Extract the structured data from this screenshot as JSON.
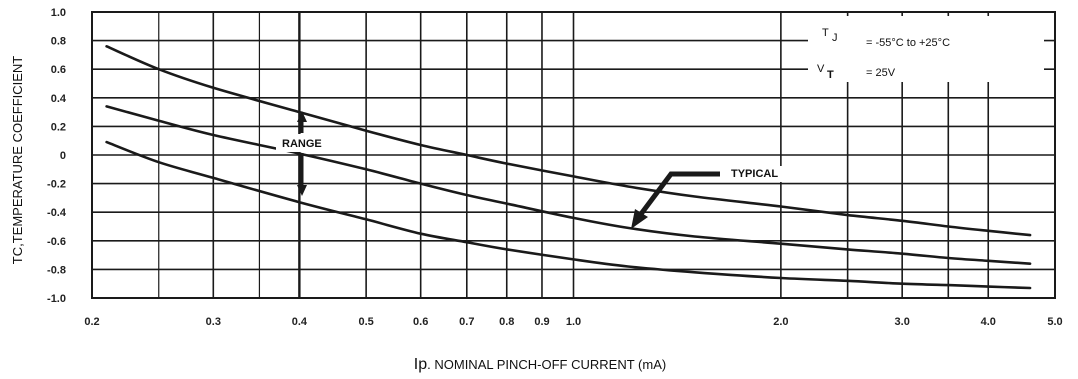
{
  "chart_data": {
    "type": "line",
    "x_scale": "log",
    "xlim": [
      0.2,
      5.0
    ],
    "ylim": [
      -1.0,
      1.0
    ],
    "grid": true,
    "xlabel_prefix": "Ip",
    "xlabel": ". NOMINAL PINCH-OFF CURRENT (mA)",
    "ylabel": "TC,TEMPERATURE COEFFICIENT",
    "x_ticks": [
      {
        "value": 0.2,
        "label": "0.2"
      },
      {
        "value": 0.3,
        "label": "0.3"
      },
      {
        "value": 0.4,
        "label": "0.4"
      },
      {
        "value": 0.5,
        "label": "0.5"
      },
      {
        "value": 0.6,
        "label": "0.6"
      },
      {
        "value": 0.7,
        "label": "0.7"
      },
      {
        "value": 0.8,
        "label": "0.8"
      },
      {
        "value": 0.9,
        "label": "0.9"
      },
      {
        "value": 1.0,
        "label": "1.0"
      },
      {
        "value": 2.0,
        "label": "2.0"
      },
      {
        "value": 3.0,
        "label": "3.0"
      },
      {
        "value": 4.0,
        "label": "4.0"
      },
      {
        "value": 5.0,
        "label": "5.0"
      }
    ],
    "y_ticks": [
      {
        "value": 1.0,
        "label": "1.0"
      },
      {
        "value": 0.8,
        "label": "0.8"
      },
      {
        "value": 0.6,
        "label": "0.6"
      },
      {
        "value": 0.4,
        "label": "0.4"
      },
      {
        "value": 0.2,
        "label": "0.2"
      },
      {
        "value": 0.0,
        "label": "0"
      },
      {
        "value": -0.2,
        "label": "-0.2"
      },
      {
        "value": -0.4,
        "label": "-0.4"
      },
      {
        "value": -0.6,
        "label": "-0.6"
      },
      {
        "value": -0.8,
        "label": "-0.8"
      },
      {
        "value": -1.0,
        "label": "-1.0"
      }
    ],
    "series": [
      {
        "role": "upper",
        "x": [
          0.21,
          0.25,
          0.3,
          0.4,
          0.5,
          0.6,
          0.7,
          0.8,
          1.0,
          1.2,
          1.5,
          2.0,
          2.5,
          3.0,
          3.5,
          4.0,
          4.6
        ],
        "y": [
          0.76,
          0.6,
          0.47,
          0.3,
          0.17,
          0.07,
          0.0,
          -0.06,
          -0.15,
          -0.22,
          -0.29,
          -0.36,
          -0.42,
          -0.46,
          -0.5,
          -0.53,
          -0.56
        ]
      },
      {
        "role": "typical",
        "x": [
          0.21,
          0.25,
          0.3,
          0.4,
          0.5,
          0.6,
          0.7,
          0.8,
          1.0,
          1.2,
          1.5,
          2.0,
          2.5,
          3.0,
          3.5,
          4.0,
          4.6
        ],
        "y": [
          0.34,
          0.24,
          0.14,
          0.01,
          -0.1,
          -0.2,
          -0.28,
          -0.34,
          -0.44,
          -0.51,
          -0.57,
          -0.62,
          -0.66,
          -0.69,
          -0.72,
          -0.74,
          -0.76
        ]
      },
      {
        "role": "lower",
        "x": [
          0.21,
          0.25,
          0.3,
          0.4,
          0.5,
          0.6,
          0.7,
          0.8,
          1.0,
          1.2,
          1.5,
          2.0,
          2.5,
          3.0,
          3.5,
          4.0,
          4.6
        ],
        "y": [
          0.09,
          -0.05,
          -0.16,
          -0.33,
          -0.45,
          -0.55,
          -0.61,
          -0.66,
          -0.73,
          -0.78,
          -0.82,
          -0.86,
          -0.88,
          -0.9,
          -0.91,
          -0.92,
          -0.93
        ]
      }
    ],
    "annotations": {
      "range_label": "RANGE",
      "typical_label": "TYPICAL",
      "conditions": [
        {
          "symbol": "T",
          "subscript": "J",
          "text": "=  -55°C  to  +25°C"
        },
        {
          "symbol": "V",
          "subscript": "T",
          "text": "=   25V"
        }
      ]
    },
    "colors": {
      "curve": "#1a1a1a",
      "grid": "#1a1a1a",
      "background": "#ffffff"
    }
  }
}
